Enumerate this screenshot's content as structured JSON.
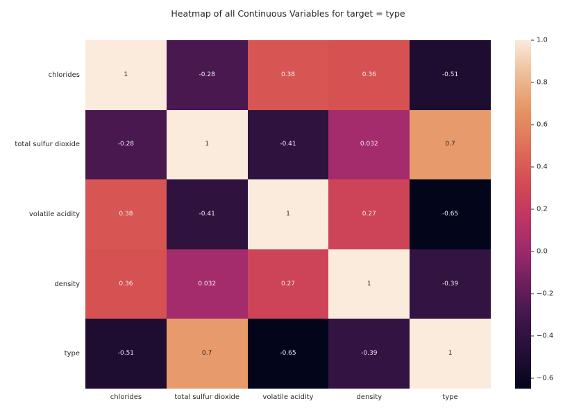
{
  "figure": {
    "background": "#ffffff"
  },
  "chart_data": {
    "type": "heatmap",
    "title": "Heatmap of all Continuous Variables for target = type",
    "x_categories": [
      "chlorides",
      "total sulfur dioxide",
      "volatile acidity",
      "density",
      "type"
    ],
    "y_categories": [
      "chlorides",
      "total sulfur dioxide",
      "volatile acidity",
      "density",
      "type"
    ],
    "matrix": [
      [
        1,
        -0.28,
        0.38,
        0.36,
        -0.51
      ],
      [
        -0.28,
        1,
        -0.41,
        0.032,
        0.7
      ],
      [
        0.38,
        -0.41,
        1,
        0.27,
        -0.65
      ],
      [
        0.36,
        0.032,
        0.27,
        1,
        -0.39
      ],
      [
        -0.51,
        0.7,
        -0.65,
        -0.39,
        1
      ]
    ],
    "cell_labels": [
      [
        "1",
        "-0.28",
        "0.38",
        "0.36",
        "-0.51"
      ],
      [
        "-0.28",
        "1",
        "-0.41",
        "0.032",
        "0.7"
      ],
      [
        "0.38",
        "-0.41",
        "1",
        "0.27",
        "-0.65"
      ],
      [
        "0.36",
        "0.032",
        "0.27",
        "1",
        "-0.39"
      ],
      [
        "-0.51",
        "0.7",
        "-0.65",
        "-0.39",
        "1"
      ]
    ],
    "vmin": -0.65,
    "vmax": 1.0,
    "colormap": "rocket",
    "colormap_stops": [
      [
        0.0,
        [
          3,
          5,
          26
        ]
      ],
      [
        0.1,
        [
          35,
          14,
          52
        ]
      ],
      [
        0.2,
        [
          61,
          22,
          75
        ]
      ],
      [
        0.3,
        [
          107,
          31,
          92
        ]
      ],
      [
        0.4,
        [
          160,
          42,
          109
        ]
      ],
      [
        0.5,
        [
          193,
          55,
          98
        ]
      ],
      [
        0.6,
        [
          213,
          77,
          81
        ]
      ],
      [
        0.7,
        [
          223,
          113,
          91
        ]
      ],
      [
        0.8,
        [
          230,
          148,
          100
        ]
      ],
      [
        0.9,
        [
          238,
          188,
          150
        ]
      ],
      [
        1.0,
        [
          250,
          235,
          221
        ]
      ]
    ],
    "colorbar": {
      "position": "right",
      "tick_labels": [
        "1.0",
        "0.8",
        "0.6",
        "0.4",
        "0.2",
        "0.0",
        "−0.2",
        "−0.4",
        "−0.6"
      ],
      "tick_values": [
        1.0,
        0.8,
        0.6,
        0.4,
        0.2,
        0.0,
        -0.2,
        -0.4,
        -0.6
      ]
    },
    "grid": false,
    "annotation_text_colors": {
      "light_cell": "#1a1a1a",
      "dark_cell": "#f2f2f2"
    }
  },
  "colors": {
    "background": "#ffffff",
    "text": "#262626"
  }
}
